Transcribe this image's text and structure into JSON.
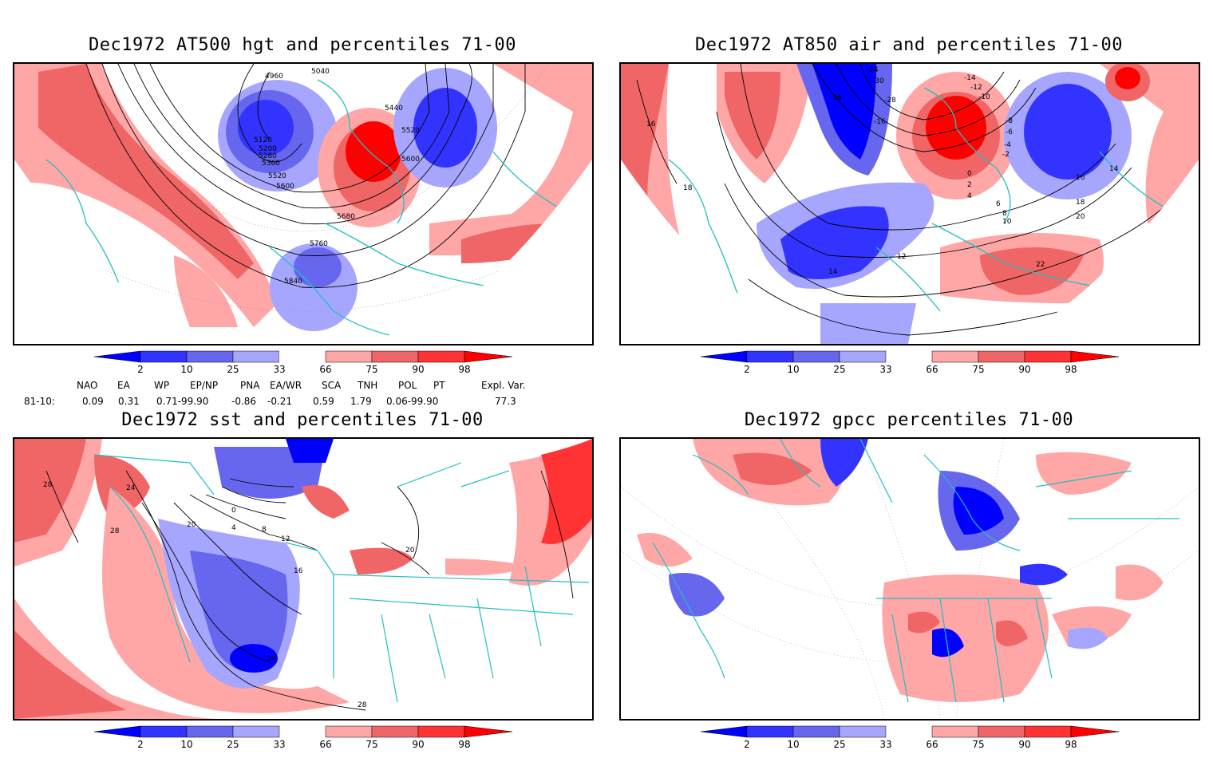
{
  "panels": [
    {
      "title": "Dec1972 AT500 hgt and percentiles 71-00",
      "contour_labels": [
        "4960",
        "5040",
        "5120",
        "5200",
        "5280",
        "5360",
        "5440",
        "5520",
        "5600",
        "5520",
        "5600",
        "5680",
        "5760",
        "5840"
      ]
    },
    {
      "title": "Dec1972 AT850 air and percentiles 71-00",
      "contour_labels": [
        "-24",
        "-26",
        "-30",
        "-28",
        "-16",
        "-14",
        "-12",
        "-10",
        "-8",
        "-6",
        "-4",
        "-2",
        "0",
        "2",
        "4",
        "6",
        "8",
        "10",
        "12",
        "14",
        "16",
        "18",
        "20",
        "22",
        "16",
        "18",
        "14"
      ]
    },
    {
      "title": "Dec1972 sst and percentiles 71-00",
      "contour_labels": [
        "28",
        "24",
        "20",
        "16",
        "12",
        "8",
        "4",
        "0",
        "28",
        "28",
        "24",
        "20"
      ]
    },
    {
      "title": "Dec1972 gpcc percentiles 71-00",
      "contour_labels": []
    }
  ],
  "colorbar": {
    "labels": [
      "2",
      "10",
      "25",
      "33",
      "66",
      "75",
      "90",
      "98"
    ],
    "colors": [
      "#0000ff",
      "#3333ff",
      "#6666ee",
      "#a6a6ff",
      "#ffffff",
      "#ffa6a6",
      "#f06666",
      "#ff3333",
      "#ff0000"
    ]
  },
  "teleconnections": {
    "row_label": "81-10:",
    "headers": [
      "NAO",
      "EA",
      "WP",
      "EP/NP",
      "PNA",
      "EA/WR",
      "SCA",
      "TNH",
      "POL",
      "PT",
      "Expl. Var."
    ],
    "values": [
      "0.09",
      "0.31",
      "0.71-99.90",
      "-0.86",
      "-0.21",
      "0.59",
      "1.79",
      "0.06-99.90",
      "77.3"
    ]
  },
  "colors": {
    "coast": "#20c0c0",
    "warm": "#ff0000",
    "cold": "#0000ff"
  }
}
